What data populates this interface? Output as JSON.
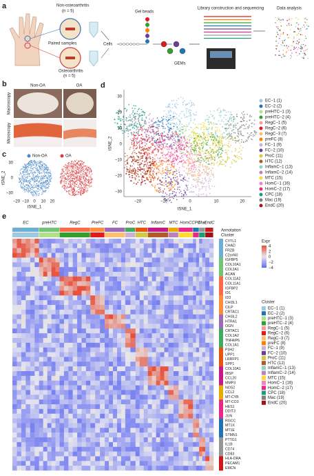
{
  "panel_a": {
    "label": "a",
    "non_oa": "Non-osteoarthritis",
    "non_oa_n": "(n = 5)",
    "paired": "Paired samples",
    "oa": "Osteoarthritis",
    "oa_n": "(n = 5)",
    "gel_beads": "Gel beads",
    "cells": "Cells",
    "gems": "GEMs",
    "library": "Library construction and sequencing",
    "analysis": "Data analysis"
  },
  "panel_b": {
    "label": "b",
    "columns": [
      "Non-OA",
      "OA"
    ],
    "rows": [
      "Macroscopy",
      "Microscopy"
    ]
  },
  "panel_c": {
    "label": "c",
    "legend": [
      {
        "name": "Non-OA",
        "color": "#4a86c8"
      },
      {
        "name": "OA",
        "color": "#d9383a"
      }
    ],
    "xlabel": "tSNE_1",
    "ylabel": "tSNE_2",
    "xticks": [
      "−20",
      "−10",
      "0",
      "10",
      "20"
    ],
    "yticks": [
      "30",
      "0",
      "−30"
    ]
  },
  "panel_d": {
    "label": "d",
    "xlabel": "tSNE_1",
    "ylabel": "tSNE_2",
    "xticks": [
      "−20",
      "−10",
      "0",
      "10",
      "20"
    ],
    "yticks": [
      "30",
      "20",
      "10",
      "0",
      "−10",
      "−20",
      "−30"
    ],
    "clusters": [
      {
        "name": "EC−1 (1)",
        "color": "#9ecae1"
      },
      {
        "name": "EC−2 (2)",
        "color": "#2171b5"
      },
      {
        "name": "preHTC−1 (3)",
        "color": "#b2df8a"
      },
      {
        "name": "preHTC−2 (4)",
        "color": "#33a02c"
      },
      {
        "name": "RegC−1 (5)",
        "color": "#fb9a99"
      },
      {
        "name": "RegC−2 (6)",
        "color": "#e31a1c"
      },
      {
        "name": "RegC−3 (7)",
        "color": "#fdbf6f"
      },
      {
        "name": "preFC (8)",
        "color": "#ff7f00"
      },
      {
        "name": "FC−1 (9)",
        "color": "#cab2d6"
      },
      {
        "name": "FC−2 (10)",
        "color": "#6a3d9a"
      },
      {
        "name": "ProC (11)",
        "color": "#d4c84a"
      },
      {
        "name": "HTC (12)",
        "color": "#b15928"
      },
      {
        "name": "InflamC−1 (13)",
        "color": "#8dd3c7"
      },
      {
        "name": "InflamC−2 (14)",
        "color": "#bc80bd"
      },
      {
        "name": "MTC (15)",
        "color": "#ffd92f"
      },
      {
        "name": "HomC−1 (16)",
        "color": "#f781bf"
      },
      {
        "name": "HomC−2 (17)",
        "color": "#e7298a"
      },
      {
        "name": "CPC (18)",
        "color": "#1b9e77"
      },
      {
        "name": "Mac (19)",
        "color": "#7f7f7f"
      },
      {
        "name": "EndC (20)",
        "color": "#a50f15"
      }
    ]
  },
  "panel_e": {
    "label": "e",
    "groups": [
      {
        "name": "EC",
        "color": "#6baed6"
      },
      {
        "name": "preHTC",
        "color": "#74c476"
      },
      {
        "name": "RegC",
        "color": "#fb6a4a"
      },
      {
        "name": "PreFC",
        "color": "#fd8d3c"
      },
      {
        "name": "FC",
        "color": "#9e6ab8"
      },
      {
        "name": "ProC",
        "color": "#41ab5d"
      },
      {
        "name": "HTC",
        "color": "#e6550d"
      },
      {
        "name": "InflamC",
        "color": "#c51b8a"
      },
      {
        "name": "MTC",
        "color": "#e6ab02"
      },
      {
        "name": "HomC",
        "color": "#e7298a"
      },
      {
        "name": "CPC",
        "color": "#2171b5"
      },
      {
        "name": "Mac",
        "color": "#969696"
      },
      {
        "name": "EndC",
        "color": "#cb181d"
      }
    ],
    "annotation": "Annotation",
    "cluster": "Cluster",
    "expr": "Expr",
    "expr_ticks": [
      "4",
      "2",
      "0",
      "−2",
      "−4"
    ],
    "legend_title": "Cluster",
    "genes": [
      "CYTL1",
      "CHAD",
      "FRZB",
      "C2orf40",
      "IGFBP5",
      "COL10A1",
      "COL2A1",
      "ACAN",
      "COL11A2",
      "COL11A1",
      "IGFBP2",
      "ID1",
      "ID3",
      "CHI3L1",
      "CILP",
      "CRTAC1",
      "CHI3L2",
      "HTRA1",
      "OGN",
      "CRTAC1",
      "COL1A2",
      "TNFAIP6",
      "COL1A1",
      "P3H2",
      "UPP1",
      "LRRFP1",
      "SPP1",
      "COL10A1",
      "IBSP",
      "CCL20",
      "MMP3",
      "NOS2",
      "CCL2",
      "MT-CYB",
      "MT-CO3",
      "HES1",
      "DDIT3",
      "JUN",
      "RGCC",
      "MT1X",
      "MT1E",
      "STMN1",
      "PTTG1",
      "IL1B",
      "CD74",
      "CD83",
      "HLA-DRA",
      "PECAM1",
      "EMCN"
    ]
  }
}
